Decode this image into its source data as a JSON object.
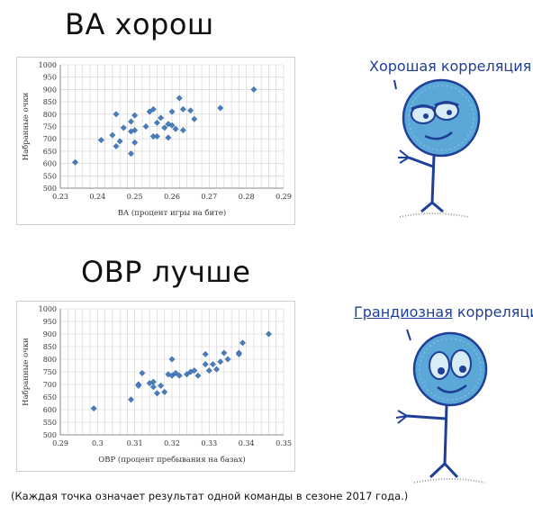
{
  "headings": {
    "top": "BA хорош",
    "bottom": "OBP лучше"
  },
  "speech": {
    "top": "Хорошая корреляция.",
    "bottom_underlined": "Грандиозная",
    "bottom_rest": " корреляция!"
  },
  "caption": "(Каждая точка означает результат одной команды в сезоне 2017 года.)",
  "colors": {
    "points": "#4a7ebb",
    "grid": "#d0d0d0",
    "ink": "#1f3f96",
    "figure_fill": "#5aa7d8"
  },
  "chart_data": [
    {
      "type": "scatter",
      "title": "",
      "xlabel": "BA (процент игры на бите)",
      "ylabel": "Набранные очки",
      "xlim": [
        0.23,
        0.29
      ],
      "ylim": [
        500,
        1000
      ],
      "xticks": [
        "0.23",
        "0.24",
        "0.25",
        "0.26",
        "0.27",
        "0.28",
        "0.29"
      ],
      "yticks": [
        "500",
        "550",
        "600",
        "650",
        "700",
        "750",
        "800",
        "850",
        "900",
        "950",
        "1000"
      ],
      "grid": true,
      "x": [
        0.234,
        0.241,
        0.244,
        0.245,
        0.245,
        0.246,
        0.247,
        0.249,
        0.249,
        0.249,
        0.25,
        0.25,
        0.25,
        0.253,
        0.254,
        0.255,
        0.255,
        0.256,
        0.256,
        0.257,
        0.258,
        0.259,
        0.259,
        0.26,
        0.26,
        0.261,
        0.262,
        0.263,
        0.263,
        0.265,
        0.266,
        0.273,
        0.282
      ],
      "y": [
        605,
        695,
        715,
        670,
        800,
        690,
        745,
        730,
        770,
        640,
        685,
        735,
        795,
        750,
        810,
        710,
        820,
        765,
        710,
        785,
        745,
        705,
        760,
        755,
        810,
        740,
        865,
        735,
        820,
        815,
        780,
        825,
        900
      ]
    },
    {
      "type": "scatter",
      "title": "",
      "xlabel": "OBP (процент пребывания на базах)",
      "ylabel": "Набранные очки",
      "xlim": [
        0.29,
        0.35
      ],
      "ylim": [
        500,
        1000
      ],
      "xticks": [
        "0.29",
        "0.3",
        "0.31",
        "0.32",
        "0.33",
        "0.34",
        "0.35"
      ],
      "yticks": [
        "500",
        "550",
        "600",
        "650",
        "700",
        "750",
        "800",
        "850",
        "900",
        "950",
        "1000"
      ],
      "grid": true,
      "x": [
        0.299,
        0.309,
        0.311,
        0.311,
        0.312,
        0.314,
        0.315,
        0.315,
        0.316,
        0.317,
        0.318,
        0.319,
        0.32,
        0.32,
        0.321,
        0.322,
        0.324,
        0.325,
        0.326,
        0.327,
        0.329,
        0.329,
        0.33,
        0.331,
        0.332,
        0.333,
        0.334,
        0.335,
        0.338,
        0.338,
        0.339,
        0.346
      ],
      "y": [
        605,
        640,
        700,
        695,
        745,
        705,
        690,
        710,
        665,
        695,
        670,
        740,
        800,
        735,
        745,
        735,
        740,
        750,
        755,
        735,
        820,
        780,
        755,
        780,
        760,
        790,
        825,
        800,
        825,
        820,
        865,
        900
      ]
    }
  ]
}
